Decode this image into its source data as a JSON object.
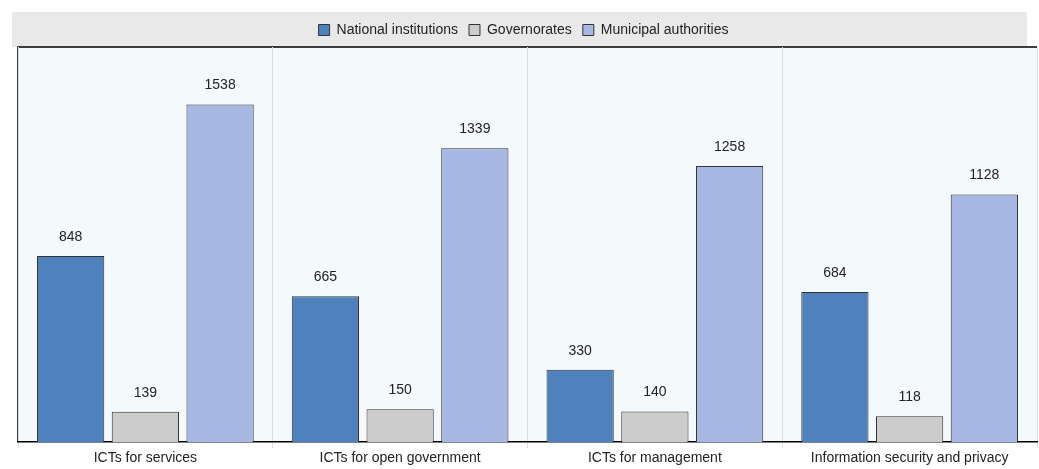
{
  "chart_data": {
    "type": "bar",
    "categories": [
      "ICTs for services",
      "ICTs for open government",
      "ICTs for management",
      "Information security and privacy"
    ],
    "series": [
      {
        "name": "National institutions",
        "color": "#4f81bd",
        "values": [
          848,
          665,
          330,
          684
        ]
      },
      {
        "name": "Governorates",
        "color": "#cccccc",
        "values": [
          139,
          150,
          140,
          118
        ]
      },
      {
        "name": "Municipal authorities",
        "color": "#a7b9e3",
        "values": [
          1538,
          1339,
          1258,
          1128
        ]
      }
    ],
    "ylim": [
      0,
      1800
    ],
    "data_labels": true,
    "legend": "top",
    "grid": "x"
  }
}
